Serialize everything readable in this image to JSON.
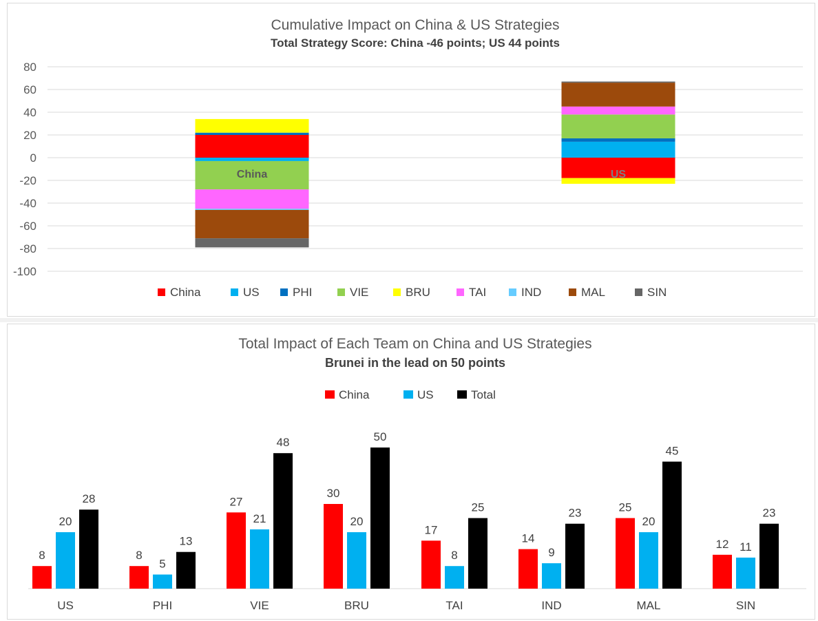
{
  "chart_data": [
    {
      "type": "bar",
      "stacked": true,
      "title": "Cumulative Impact on China & US Strategies",
      "subtitle": "Total Strategy Score: China -46 points; US 44 points",
      "ylim": [
        -100,
        80
      ],
      "yticks": [
        80,
        60,
        40,
        20,
        0,
        -20,
        -40,
        -60,
        -80,
        -100
      ],
      "grid": true,
      "legend_position": "bottom",
      "categories": [
        "China",
        "US"
      ],
      "colors": {
        "China": "#ff0000",
        "US": "#00b0f0",
        "PHI": "#0070c0",
        "VIE": "#92d050",
        "BRU": "#ffff00",
        "TAI": "#ff66ff",
        "IND": "#66ccff",
        "MAL": "#9c4a0c",
        "SIN": "#666666"
      },
      "series": [
        {
          "name": "China",
          "values": [
            20,
            -18
          ]
        },
        {
          "name": "US",
          "values": [
            -3,
            14
          ]
        },
        {
          "name": "PHI",
          "values": [
            2,
            3
          ]
        },
        {
          "name": "VIE",
          "values": [
            -25,
            21
          ]
        },
        {
          "name": "BRU",
          "values": [
            12,
            -5
          ]
        },
        {
          "name": "TAI",
          "values": [
            -17,
            7
          ]
        },
        {
          "name": "IND",
          "values": [
            -1,
            0
          ]
        },
        {
          "name": "MAL",
          "values": [
            -25,
            21
          ]
        },
        {
          "name": "SIN",
          "values": [
            -8,
            1
          ]
        }
      ],
      "bar_labels": [
        "China",
        "US"
      ]
    },
    {
      "type": "bar",
      "title": "Total Impact of Each Team on China and US Strategies",
      "subtitle": "Brunei in the lead on 50 points",
      "ylim": [
        0,
        60
      ],
      "grid": false,
      "legend_position": "top",
      "categories": [
        "US",
        "PHI",
        "VIE",
        "BRU",
        "TAI",
        "IND",
        "MAL",
        "SIN"
      ],
      "colors": {
        "China": "#ff0000",
        "US": "#00b0f0",
        "Total": "#000000"
      },
      "series": [
        {
          "name": "China",
          "values": [
            8,
            8,
            27,
            30,
            17,
            14,
            25,
            12
          ]
        },
        {
          "name": "US",
          "values": [
            20,
            5,
            21,
            20,
            8,
            9,
            20,
            11
          ]
        },
        {
          "name": "Total",
          "values": [
            28,
            13,
            48,
            50,
            25,
            23,
            45,
            23
          ]
        }
      ]
    }
  ]
}
